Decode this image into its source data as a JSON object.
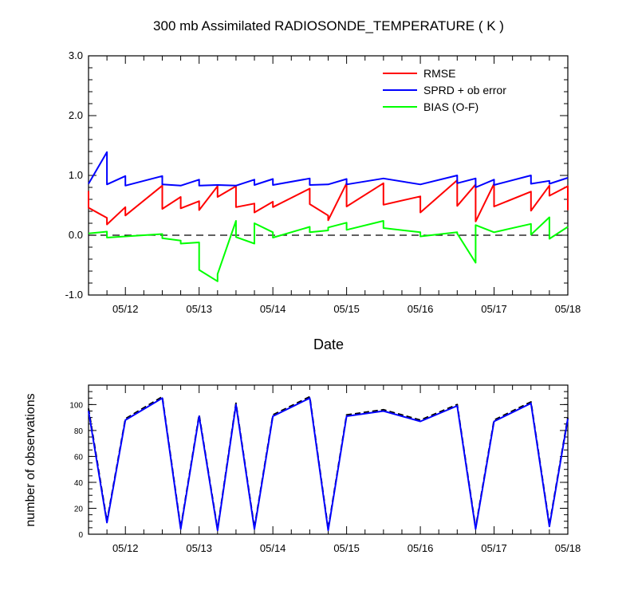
{
  "chart_data": [
    {
      "type": "line",
      "title": "300 mb Assimilated RADIOSONDE_TEMPERATURE ( K )",
      "xlabel": "Date",
      "ylabel": "",
      "ylim": [
        -1.0,
        3.0
      ],
      "yticks": [
        "-1.0",
        "0.0",
        "1.0",
        "2.0",
        "3.0"
      ],
      "xlim": [
        "05/11 12Z",
        "05/18 00Z"
      ],
      "xticks": [
        "05/12",
        "05/13",
        "05/14",
        "05/15",
        "05/16",
        "05/17",
        "05/18"
      ],
      "legend_position": "top-right",
      "zero_line": "dashed",
      "series": [
        {
          "name": "RMSE",
          "color": "#ff0000",
          "points": [
            [
              "05/11 12Z",
              0.74
            ],
            [
              "05/11 12Z",
              0.46
            ],
            [
              "05/11 18Z",
              0.29
            ],
            [
              "05/11 18Z",
              0.18
            ],
            [
              "05/12 00Z",
              0.47
            ],
            [
              "05/12 00Z",
              0.33
            ],
            [
              "05/12 12Z",
              0.83
            ],
            [
              "05/12 12Z",
              0.44
            ],
            [
              "05/12 18Z",
              0.64
            ],
            [
              "05/12 18Z",
              0.45
            ],
            [
              "05/13 00Z",
              0.57
            ],
            [
              "05/13 00Z",
              0.42
            ],
            [
              "05/13 06Z",
              0.82
            ],
            [
              "05/13 06Z",
              0.64
            ],
            [
              "05/13 12Z",
              0.82
            ],
            [
              "05/13 12Z",
              0.47
            ],
            [
              "05/13 18Z",
              0.53
            ],
            [
              "05/13 18Z",
              0.38
            ],
            [
              "05/14 00Z",
              0.56
            ],
            [
              "05/14 00Z",
              0.47
            ],
            [
              "05/14 12Z",
              0.78
            ],
            [
              "05/14 12Z",
              0.52
            ],
            [
              "05/14 18Z",
              0.33
            ],
            [
              "05/14 18Z",
              0.25
            ],
            [
              "05/15 00Z",
              0.87
            ],
            [
              "05/15 00Z",
              0.48
            ],
            [
              "05/15 12Z",
              0.87
            ],
            [
              "05/15 12Z",
              0.51
            ],
            [
              "05/16 00Z",
              0.65
            ],
            [
              "05/16 00Z",
              0.38
            ],
            [
              "05/16 12Z",
              0.92
            ],
            [
              "05/16 12Z",
              0.49
            ],
            [
              "05/16 18Z",
              0.85
            ],
            [
              "05/16 18Z",
              0.23
            ],
            [
              "05/17 00Z",
              0.86
            ],
            [
              "05/17 00Z",
              0.48
            ],
            [
              "05/17 12Z",
              0.73
            ],
            [
              "05/17 12Z",
              0.41
            ],
            [
              "05/17 18Z",
              0.83
            ],
            [
              "05/17 18Z",
              0.66
            ],
            [
              "05/18 00Z",
              0.82
            ],
            [
              "05/18 00Z",
              0.42
            ]
          ]
        },
        {
          "name": "SPRD + ob error",
          "color": "#0000ff",
          "points": [
            [
              "05/11 12Z",
              0.86
            ],
            [
              "05/11 18Z",
              1.39
            ],
            [
              "05/11 18Z",
              0.85
            ],
            [
              "05/12 00Z",
              0.99
            ],
            [
              "05/12 00Z",
              0.83
            ],
            [
              "05/12 12Z",
              0.99
            ],
            [
              "05/12 12Z",
              0.85
            ],
            [
              "05/12 18Z",
              0.83
            ],
            [
              "05/13 00Z",
              0.93
            ],
            [
              "05/13 00Z",
              0.83
            ],
            [
              "05/13 06Z",
              0.84
            ],
            [
              "05/13 12Z",
              0.83
            ],
            [
              "05/13 18Z",
              0.93
            ],
            [
              "05/13 18Z",
              0.84
            ],
            [
              "05/14 00Z",
              0.94
            ],
            [
              "05/14 00Z",
              0.84
            ],
            [
              "05/14 12Z",
              0.95
            ],
            [
              "05/14 12Z",
              0.84
            ],
            [
              "05/14 18Z",
              0.85
            ],
            [
              "05/15 00Z",
              0.94
            ],
            [
              "05/15 00Z",
              0.85
            ],
            [
              "05/15 12Z",
              0.95
            ],
            [
              "05/16 00Z",
              0.85
            ],
            [
              "05/16 12Z",
              1.0
            ],
            [
              "05/16 12Z",
              0.87
            ],
            [
              "05/16 18Z",
              0.95
            ],
            [
              "05/16 18Z",
              0.8
            ],
            [
              "05/17 00Z",
              0.93
            ],
            [
              "05/17 00Z",
              0.84
            ],
            [
              "05/17 12Z",
              1.0
            ],
            [
              "05/17 12Z",
              0.86
            ],
            [
              "05/17 18Z",
              0.91
            ],
            [
              "05/17 18Z",
              0.86
            ],
            [
              "05/18 00Z",
              0.96
            ]
          ]
        },
        {
          "name": "BIAS (O-F)",
          "color": "#00ff00",
          "points": [
            [
              "05/11 12Z",
              0.03
            ],
            [
              "05/11 18Z",
              0.06
            ],
            [
              "05/11 18Z",
              -0.04
            ],
            [
              "05/12 12Z",
              0.02
            ],
            [
              "05/12 12Z",
              -0.05
            ],
            [
              "05/12 18Z",
              -0.09
            ],
            [
              "05/12 18Z",
              -0.14
            ],
            [
              "05/13 00Z",
              -0.12
            ],
            [
              "05/13 00Z",
              -0.58
            ],
            [
              "05/13 06Z",
              -0.77
            ],
            [
              "05/13 06Z",
              -0.65
            ],
            [
              "05/13 12Z",
              0.24
            ],
            [
              "05/13 12Z",
              -0.03
            ],
            [
              "05/13 18Z",
              -0.14
            ],
            [
              "05/13 18Z",
              0.2
            ],
            [
              "05/14 00Z",
              0.05
            ],
            [
              "05/14 00Z",
              -0.04
            ],
            [
              "05/14 12Z",
              0.14
            ],
            [
              "05/14 12Z",
              0.05
            ],
            [
              "05/14 18Z",
              0.08
            ],
            [
              "05/14 18Z",
              0.13
            ],
            [
              "05/15 00Z",
              0.21
            ],
            [
              "05/15 00Z",
              0.09
            ],
            [
              "05/15 12Z",
              0.24
            ],
            [
              "05/15 12Z",
              0.12
            ],
            [
              "05/16 00Z",
              0.05
            ],
            [
              "05/16 00Z",
              -0.02
            ],
            [
              "05/16 12Z",
              0.05
            ],
            [
              "05/16 12Z",
              0.03
            ],
            [
              "05/16 18Z",
              -0.46
            ],
            [
              "05/16 18Z",
              0.17
            ],
            [
              "05/17 00Z",
              0.05
            ],
            [
              "05/17 12Z",
              0.19
            ],
            [
              "05/17 12Z",
              0.01
            ],
            [
              "05/17 18Z",
              0.3
            ],
            [
              "05/17 18Z",
              -0.06
            ],
            [
              "05/18 00Z",
              0.14
            ]
          ]
        }
      ]
    },
    {
      "type": "line",
      "title": "",
      "xlabel": "",
      "ylabel": "number of observations",
      "ylim": [
        0,
        115
      ],
      "yticks": [
        "0",
        "20",
        "40",
        "60",
        "80",
        "100"
      ],
      "xlim": [
        "05/11 12Z",
        "05/18 00Z"
      ],
      "xticks": [
        "05/12",
        "05/13",
        "05/14",
        "05/15",
        "05/16",
        "05/17",
        "05/18"
      ],
      "series": [
        {
          "name": "",
          "color": "#000000",
          "dash": "dashed",
          "points": [
            [
              "05/11 12Z",
              97
            ],
            [
              "05/11 18Z",
              10
            ],
            [
              "05/12 00Z",
              89
            ],
            [
              "05/12 12Z",
              106
            ],
            [
              "05/12 18Z",
              5
            ],
            [
              "05/13 00Z",
              92
            ],
            [
              "05/13 06Z",
              4
            ],
            [
              "05/13 12Z",
              101
            ],
            [
              "05/13 18Z",
              5
            ],
            [
              "05/14 00Z",
              92
            ],
            [
              "05/14 12Z",
              106
            ],
            [
              "05/14 18Z",
              4
            ],
            [
              "05/15 00Z",
              92
            ],
            [
              "05/15 12Z",
              96
            ],
            [
              "05/16 00Z",
              88
            ],
            [
              "05/16 12Z",
              100
            ],
            [
              "05/16 18Z",
              5
            ],
            [
              "05/17 00Z",
              88
            ],
            [
              "05/17 12Z",
              102
            ],
            [
              "05/17 18Z",
              7
            ],
            [
              "05/18 00Z",
              90
            ]
          ]
        },
        {
          "name": "",
          "color": "#0000ff",
          "dash": "solid",
          "points": [
            [
              "05/11 12Z",
              95
            ],
            [
              "05/11 18Z",
              9
            ],
            [
              "05/12 00Z",
              88
            ],
            [
              "05/12 12Z",
              105
            ],
            [
              "05/12 18Z",
              4
            ],
            [
              "05/13 00Z",
              91
            ],
            [
              "05/13 06Z",
              3
            ],
            [
              "05/13 12Z",
              100
            ],
            [
              "05/13 18Z",
              4
            ],
            [
              "05/14 00Z",
              91
            ],
            [
              "05/14 12Z",
              105
            ],
            [
              "05/14 18Z",
              3
            ],
            [
              "05/15 00Z",
              91
            ],
            [
              "05/15 12Z",
              95
            ],
            [
              "05/16 00Z",
              87
            ],
            [
              "05/16 12Z",
              99
            ],
            [
              "05/16 18Z",
              4
            ],
            [
              "05/17 00Z",
              87
            ],
            [
              "05/17 12Z",
              101
            ],
            [
              "05/17 18Z",
              6
            ],
            [
              "05/18 00Z",
              89
            ]
          ]
        }
      ]
    }
  ]
}
